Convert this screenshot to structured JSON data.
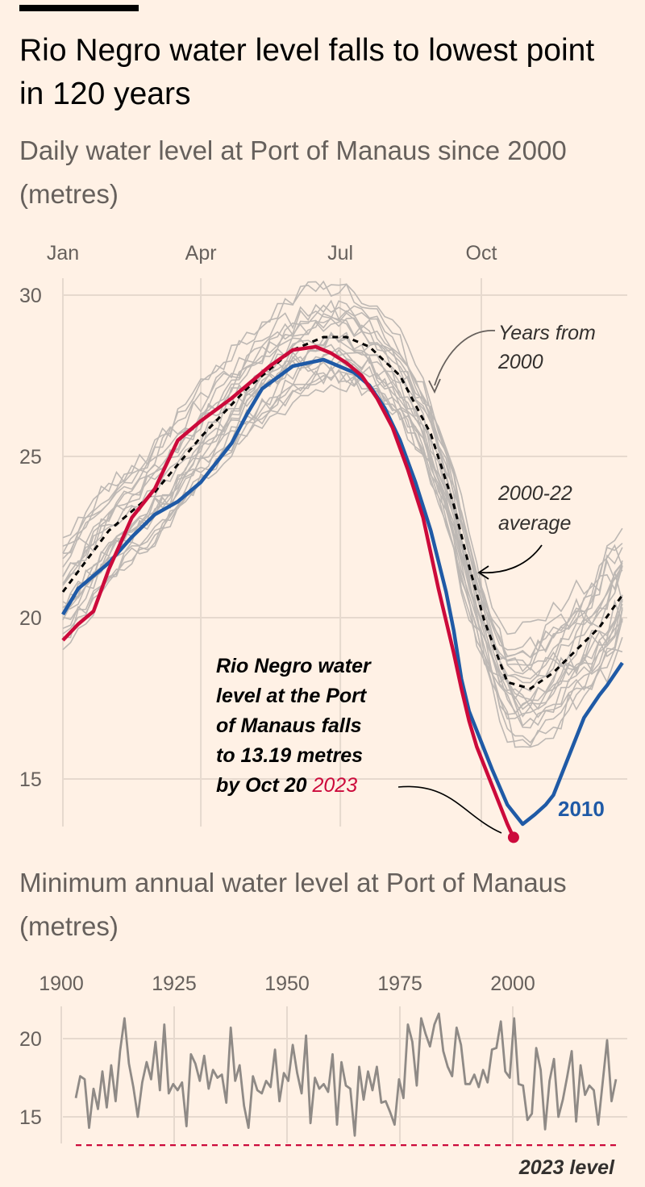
{
  "header": {
    "title": "Rio Negro water level falls to lowest point in 120 years",
    "subtitle": "Daily water level at Port of Manaus since 2000 (metres)"
  },
  "colors": {
    "background": "#fff1e5",
    "grid": "#e6d9ce",
    "years": "#bdb8b4",
    "average": "#000000",
    "y2023": "#cc0a3b",
    "y2010": "#1f5aa6",
    "min_series": "#8f8a86",
    "min_ref": "#cc0a3b"
  },
  "chart_data": [
    {
      "type": "line",
      "title": "Daily water level at Port of Manaus since 2000 (metres)",
      "x_ticks": [
        "Jan",
        "Apr",
        "Jul",
        "Oct"
      ],
      "y_ticks": [
        "30",
        "25",
        "20",
        "15"
      ],
      "ylim": [
        13,
        30
      ],
      "xlim_days": [
        0,
        365
      ],
      "series": [
        {
          "name": "2000-22 average",
          "style": "dashed",
          "days": [
            0,
            30,
            60,
            90,
            120,
            150,
            170,
            185,
            200,
            220,
            240,
            255,
            265,
            275,
            290,
            305,
            320,
            335,
            350,
            365
          ],
          "values": [
            20.8,
            22.7,
            23.9,
            25.6,
            27.1,
            28.3,
            28.7,
            28.7,
            28.4,
            27.5,
            25.7,
            23.5,
            21.6,
            19.9,
            18.0,
            17.8,
            18.3,
            19.0,
            19.7,
            20.7
          ]
        },
        {
          "name": "2010",
          "label": "2010",
          "days": [
            0,
            10,
            30,
            45,
            60,
            75,
            90,
            100,
            110,
            120,
            130,
            150,
            160,
            170,
            180,
            190,
            200,
            210,
            220,
            230,
            240,
            250,
            255,
            260,
            265,
            270,
            280,
            290,
            300,
            308,
            315,
            320,
            330,
            340,
            350,
            355,
            365
          ],
          "values": [
            20.1,
            20.9,
            21.7,
            22.5,
            23.2,
            23.6,
            24.2,
            24.8,
            25.4,
            26.3,
            27.1,
            27.8,
            27.9,
            28.0,
            27.8,
            27.6,
            27.2,
            26.5,
            25.5,
            24.2,
            22.7,
            20.8,
            19.6,
            18.1,
            17.1,
            16.5,
            15.3,
            14.2,
            13.6,
            13.9,
            14.2,
            14.5,
            15.7,
            16.9,
            17.6,
            17.9,
            18.6
          ]
        },
        {
          "name": "2023",
          "label": "2023",
          "days": [
            0,
            10,
            20,
            30,
            45,
            60,
            75,
            90,
            110,
            120,
            135,
            150,
            165,
            175,
            185,
            195,
            205,
            215,
            225,
            235,
            245,
            255,
            260,
            265,
            270,
            275,
            280,
            285,
            290,
            294
          ],
          "values": [
            19.3,
            19.8,
            20.2,
            21.5,
            23.1,
            24.0,
            25.5,
            26.1,
            26.8,
            27.2,
            27.8,
            28.3,
            28.4,
            28.2,
            27.9,
            27.5,
            26.8,
            25.9,
            24.6,
            23.1,
            20.9,
            18.9,
            17.8,
            16.8,
            16.0,
            15.4,
            14.8,
            14.2,
            13.6,
            13.19
          ]
        }
      ],
      "annotations": {
        "years_label": "Years from 2000",
        "average_label": "2000-22 average",
        "note_lines": [
          "Rio Negro water",
          "level at the Port",
          "of Manaus falls",
          "to 13.19 metres",
          "by Oct 20"
        ],
        "note_year": "2023"
      }
    },
    {
      "type": "line",
      "title": "Minimum annual water level at Port of Manaus (metres)",
      "x_ticks": [
        "1900",
        "1925",
        "1950",
        "1975",
        "2000"
      ],
      "y_ticks": [
        "20",
        "15"
      ],
      "ylim": [
        13.2,
        21.8
      ],
      "xlim": [
        1900,
        2023
      ],
      "values": [
        16.2,
        17.6,
        17.4,
        14.3,
        16.8,
        15.5,
        17.9,
        15.6,
        18.3,
        16.0,
        19.2,
        21.3,
        18.4,
        16.9,
        15.0,
        17.2,
        18.5,
        17.4,
        19.8,
        16.7,
        20.9,
        16.5,
        17.1,
        16.7,
        17.2,
        14.4,
        19.0,
        18.4,
        17.3,
        18.9,
        16.8,
        18.0,
        17.5,
        17.7,
        15.9,
        20.7,
        17.3,
        18.3,
        15.7,
        14.3,
        17.6,
        16.7,
        16.5,
        17.3,
        16.9,
        19.3,
        16.0,
        17.8,
        17.3,
        19.6,
        17.8,
        16.5,
        20.2,
        14.6,
        17.5,
        16.8,
        17.1,
        16.6,
        19.0,
        14.5,
        18.5,
        17.0,
        16.8,
        13.8,
        18.2,
        16.1,
        17.9,
        16.7,
        18.2,
        15.9,
        16.0,
        15.3,
        14.5,
        17.4,
        16.2,
        20.9,
        19.8,
        17.0,
        21.3,
        20.3,
        19.5,
        20.9,
        21.6,
        19.2,
        18.2,
        17.6,
        20.7,
        19.6,
        17.1,
        17.1,
        17.7,
        16.9,
        18.0,
        17.2,
        19.3,
        19.4,
        21.1,
        17.9,
        17.5,
        21.3,
        17.1,
        17.0,
        14.8,
        15.2,
        19.4,
        18.0,
        14.2,
        17.3,
        18.7,
        15.0,
        16.1,
        17.6,
        19.2,
        14.7,
        18.3,
        16.4,
        17.0,
        16.7,
        14.5,
        17.2,
        19.9,
        16.0,
        17.4
      ],
      "reference_2023": 13.19,
      "reference_label": "2023 level"
    }
  ],
  "lower": {
    "subtitle": "Minimum annual water level at Port of Manaus (metres)"
  }
}
